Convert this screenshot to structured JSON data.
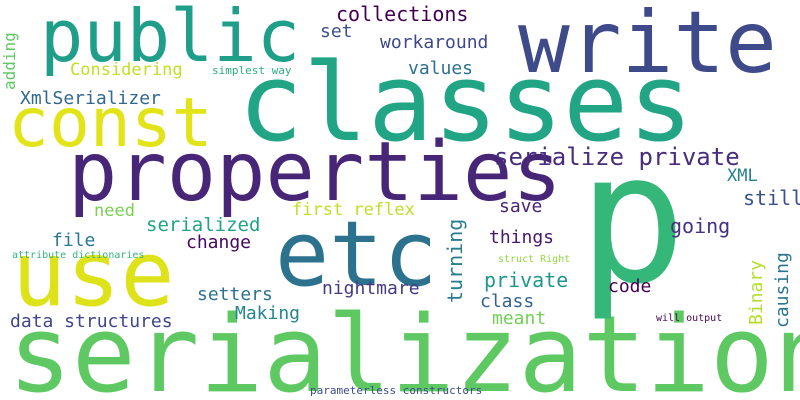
{
  "words": [
    {
      "text": "serialization",
      "color": "#5ec962"
    },
    {
      "text": "classes",
      "color": "#21a585"
    },
    {
      "text": "p",
      "color": "#35b779"
    },
    {
      "text": "properties",
      "color": "#482677"
    },
    {
      "text": "etc",
      "color": "#2c728e"
    },
    {
      "text": "use",
      "color": "#dde318"
    },
    {
      "text": "write",
      "color": "#3e4a89"
    },
    {
      "text": "public",
      "color": "#1f9e89"
    },
    {
      "text": "const",
      "color": "#e2e418"
    },
    {
      "text": "serialize private",
      "color": "#472d7b"
    },
    {
      "text": "collections",
      "color": "#440154"
    },
    {
      "text": "set",
      "color": "#3b528b"
    },
    {
      "text": "workaround",
      "color": "#3e4989"
    },
    {
      "text": "Considering",
      "color": "#c2df23"
    },
    {
      "text": "simplest way",
      "color": "#29af7f"
    },
    {
      "text": "values",
      "color": "#2d708e"
    },
    {
      "text": "XmlSerializer",
      "color": "#31688e"
    },
    {
      "text": "adding",
      "color": "#5ec962"
    },
    {
      "text": "XML",
      "color": "#277f8e"
    },
    {
      "text": "still",
      "color": "#3b528b"
    },
    {
      "text": "save",
      "color": "#482475"
    },
    {
      "text": "need",
      "color": "#7ad151"
    },
    {
      "text": "first reflex",
      "color": "#bddf26"
    },
    {
      "text": "serialized",
      "color": "#20a386"
    },
    {
      "text": "going",
      "color": "#46327e"
    },
    {
      "text": "things",
      "color": "#481769"
    },
    {
      "text": "change",
      "color": "#46085c"
    },
    {
      "text": "file",
      "color": "#2a788e"
    },
    {
      "text": "turning",
      "color": "#287d8e"
    },
    {
      "text": "attribute dictionaries",
      "color": "#31b57b"
    },
    {
      "text": "struct Right",
      "color": "#95d840"
    },
    {
      "text": "private",
      "color": "#1f988b"
    },
    {
      "text": "Binary",
      "color": "#b5de2b"
    },
    {
      "text": "causing",
      "color": "#2a768e"
    },
    {
      "text": "setters",
      "color": "#2c718e"
    },
    {
      "text": "nightmare",
      "color": "#443a83"
    },
    {
      "text": "class",
      "color": "#33638d"
    },
    {
      "text": "code",
      "color": "#440154"
    },
    {
      "text": "meant",
      "color": "#73d056"
    },
    {
      "text": "Making",
      "color": "#25858e"
    },
    {
      "text": "data structures",
      "color": "#404688"
    },
    {
      "text": "will output",
      "color": "#450559"
    },
    {
      "text": "parameterless constructors",
      "color": "#3e4a89"
    }
  ]
}
